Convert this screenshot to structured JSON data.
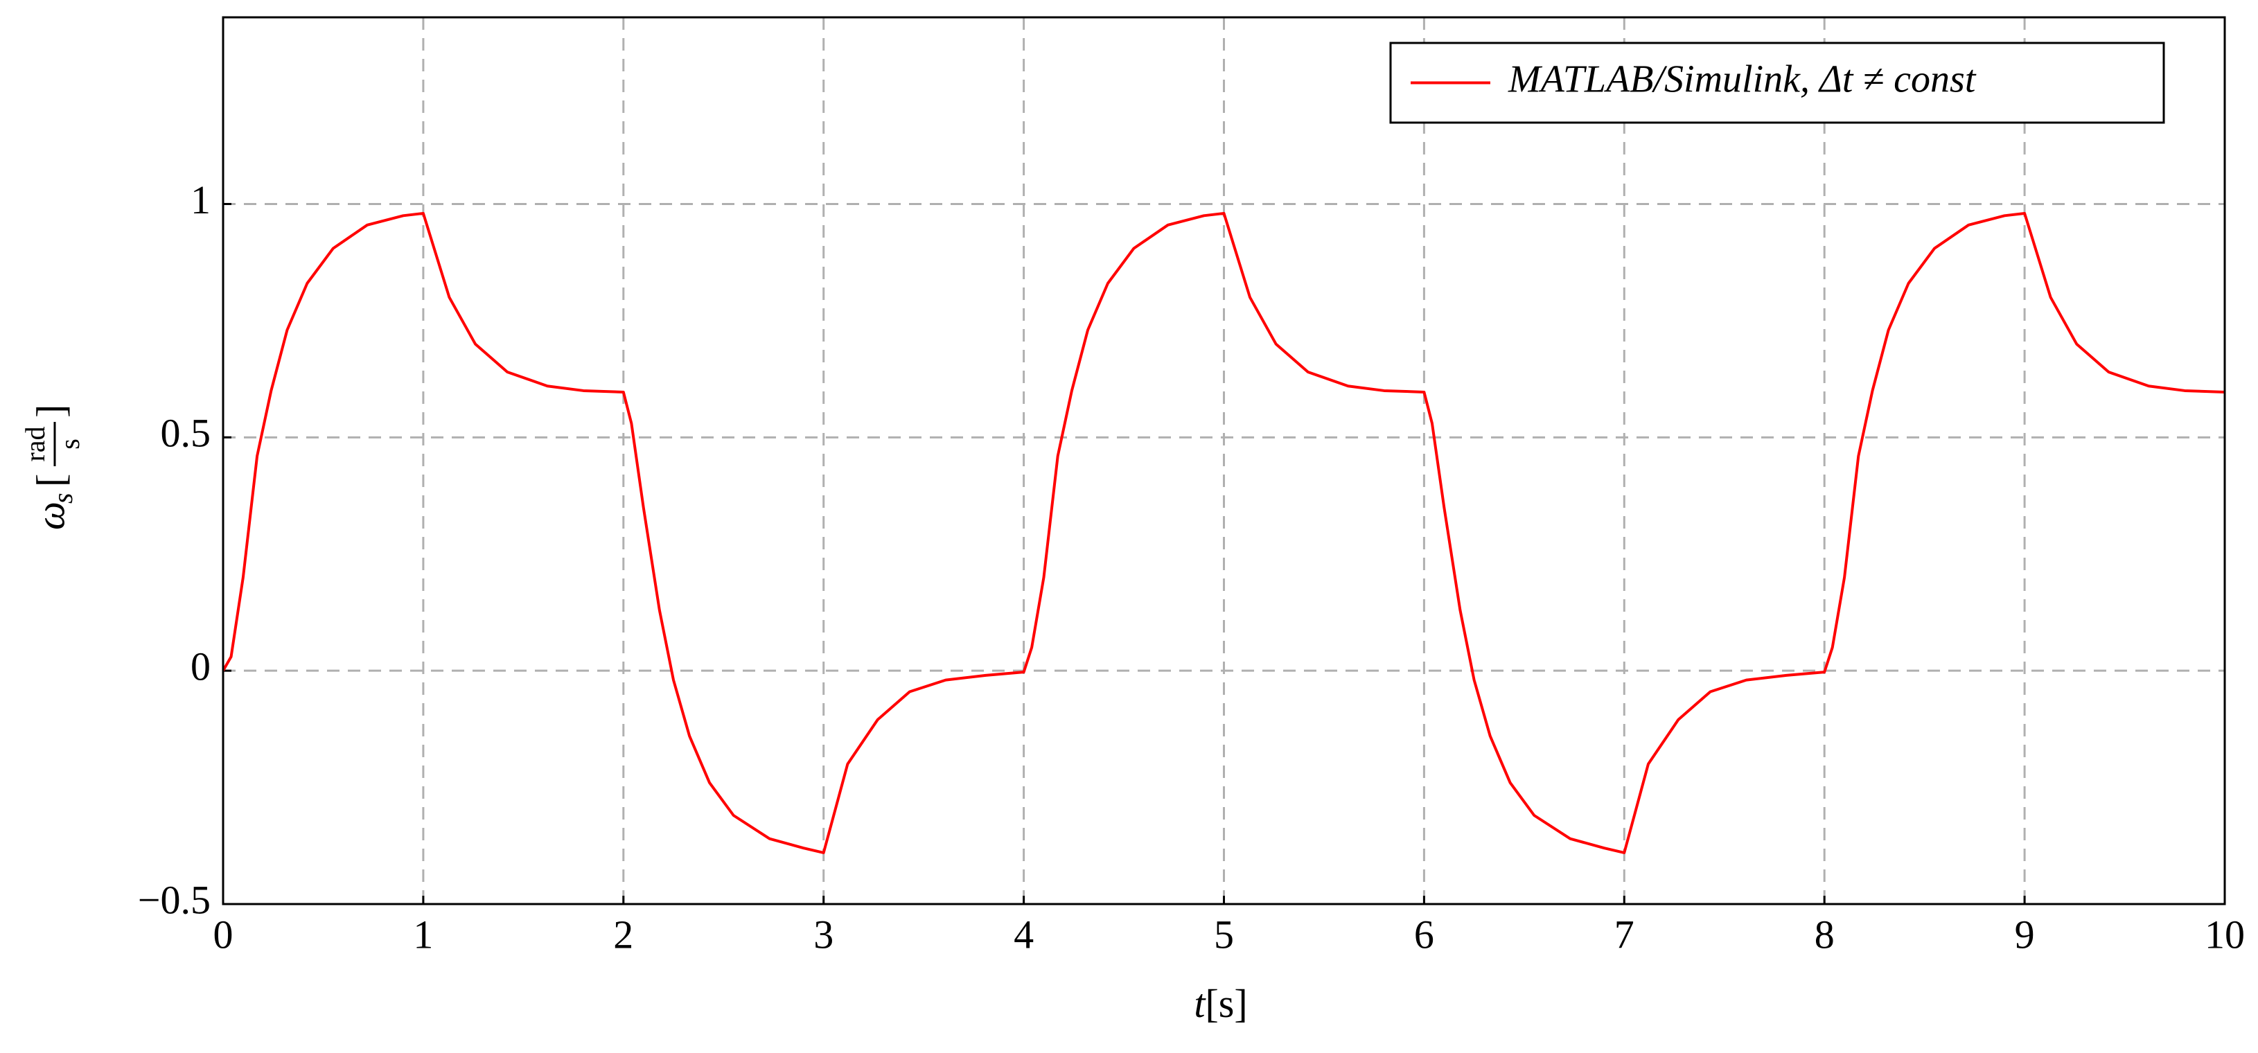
{
  "chart_data": {
    "type": "line",
    "x_label": [
      "t",
      "[s]"
    ],
    "y_label": [
      "ω",
      "s",
      "[",
      "rad",
      "s",
      "]"
    ],
    "x": [
      0,
      0.04,
      0.1,
      0.17,
      0.24,
      0.32,
      0.42,
      0.55,
      0.72,
      0.9,
      1,
      1.13,
      1.26,
      1.42,
      1.62,
      1.8,
      2,
      2.04,
      2.1,
      2.18,
      2.25,
      2.33,
      2.43,
      2.55,
      2.73,
      2.9,
      3,
      3.12,
      3.27,
      3.43,
      3.61,
      3.81,
      4,
      4.04,
      4.1,
      4.17,
      4.24,
      4.32,
      4.42,
      4.55,
      4.72,
      4.9,
      5,
      5.13,
      5.26,
      5.42,
      5.62,
      5.8,
      6,
      6.04,
      6.1,
      6.18,
      6.25,
      6.33,
      6.43,
      6.55,
      6.73,
      6.9,
      7,
      7.12,
      7.27,
      7.43,
      7.61,
      7.81,
      8,
      8.04,
      8.1,
      8.17,
      8.24,
      8.32,
      8.42,
      8.55,
      8.72,
      8.9,
      9,
      9.13,
      9.26,
      9.42,
      9.62,
      9.8,
      10
    ],
    "series": [
      {
        "name": "MATLAB/Simulink, Δt ≠ const",
        "color": "#ff0000",
        "values": [
          0,
          0.03,
          0.2,
          0.46,
          0.6,
          0.73,
          0.83,
          0.905,
          0.955,
          0.975,
          0.98,
          0.8,
          0.7,
          0.64,
          0.61,
          0.6,
          0.597,
          0.53,
          0.35,
          0.13,
          -0.02,
          -0.14,
          -0.24,
          -0.31,
          -0.36,
          -0.38,
          -0.39,
          -0.2,
          -0.105,
          -0.045,
          -0.02,
          -0.01,
          -0.003,
          0.05,
          0.2,
          0.46,
          0.6,
          0.73,
          0.83,
          0.905,
          0.955,
          0.975,
          0.98,
          0.8,
          0.7,
          0.64,
          0.61,
          0.6,
          0.597,
          0.53,
          0.35,
          0.13,
          -0.02,
          -0.14,
          -0.24,
          -0.31,
          -0.36,
          -0.38,
          -0.39,
          -0.2,
          -0.105,
          -0.045,
          -0.02,
          -0.01,
          -0.003,
          0.05,
          0.2,
          0.46,
          0.6,
          0.73,
          0.83,
          0.905,
          0.955,
          0.975,
          0.98,
          0.8,
          0.7,
          0.64,
          0.61,
          0.6,
          0.597
        ]
      }
    ],
    "xlim": [
      0,
      10
    ],
    "xticks": [
      0,
      1,
      2,
      3,
      4,
      5,
      6,
      7,
      8,
      9,
      10
    ],
    "ylim": [
      -0.5,
      1.4
    ],
    "yticks": [
      {
        "value": -0.5,
        "label": "−0.5"
      },
      0,
      0.5,
      1
    ],
    "grid": true,
    "legend": "upper right"
  }
}
